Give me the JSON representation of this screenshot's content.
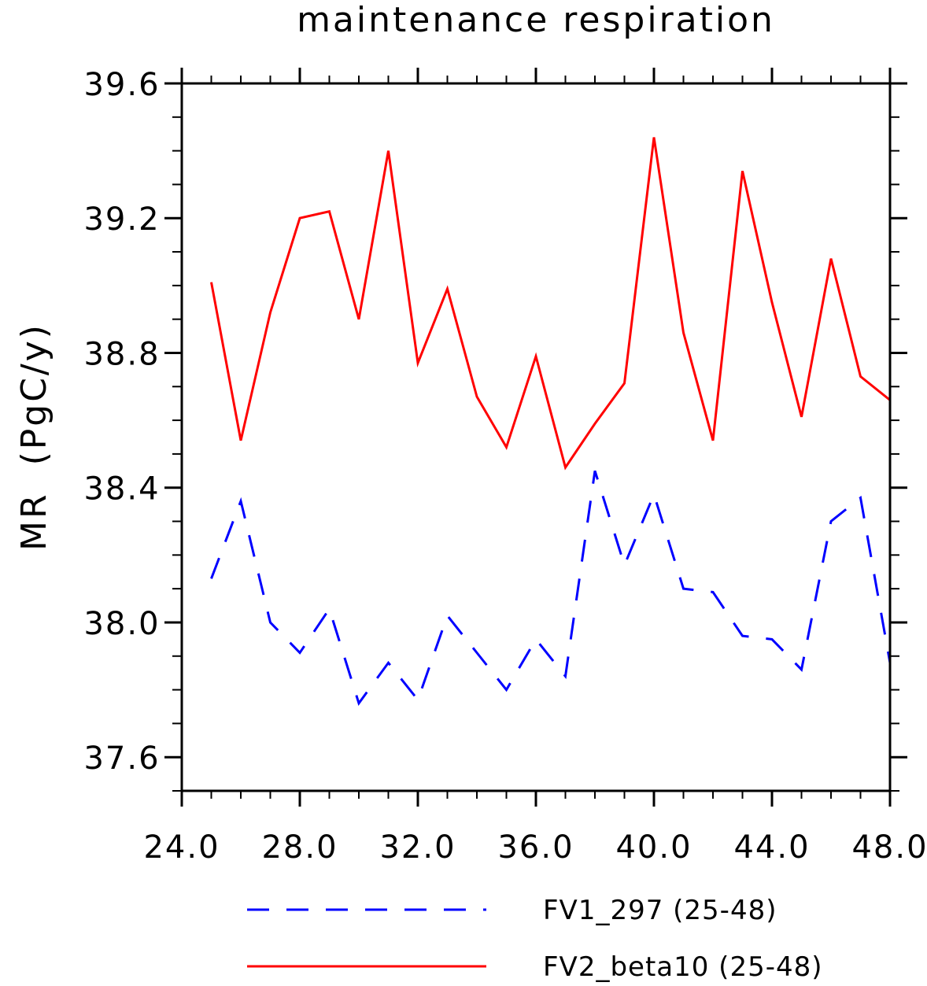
{
  "chart_data": {
    "type": "line",
    "title": "maintenance respiration",
    "xlabel": "",
    "ylabel": "MR  (PgC/y)",
    "xlim": [
      24,
      48
    ],
    "ylim": [
      37.5,
      39.6
    ],
    "x_major_ticks": [
      24,
      28,
      32,
      36,
      40,
      44,
      48
    ],
    "x_tick_labels": [
      "24.0",
      "28.0",
      "32.0",
      "36.0",
      "40.0",
      "44.0",
      "48.0"
    ],
    "y_major_ticks": [
      37.6,
      38.0,
      38.4,
      38.8,
      39.2,
      39.6
    ],
    "y_tick_labels": [
      "37.6",
      "38.0",
      "38.4",
      "38.8",
      "39.2",
      "39.6"
    ],
    "grid": false,
    "legend_position": "bottom",
    "x": [
      25,
      26,
      27,
      28,
      29,
      30,
      31,
      32,
      33,
      34,
      35,
      36,
      37,
      38,
      39,
      40,
      41,
      42,
      43,
      44,
      45,
      46,
      47,
      48
    ],
    "series": [
      {
        "name": "FV1_297 (25-48)",
        "color": "#0000ff",
        "dash": "dashed",
        "values": [
          38.13,
          38.36,
          38.0,
          37.91,
          38.04,
          37.76,
          37.88,
          37.77,
          38.02,
          37.91,
          37.8,
          37.95,
          37.84,
          38.45,
          38.17,
          38.38,
          38.1,
          38.09,
          37.96,
          37.95,
          37.86,
          38.3,
          38.37,
          37.88
        ]
      },
      {
        "name": "FV2_beta10 (25-48)",
        "color": "#ff0000",
        "dash": "solid",
        "values": [
          39.01,
          38.54,
          38.92,
          39.2,
          39.22,
          38.9,
          39.4,
          38.77,
          38.99,
          38.67,
          38.52,
          38.79,
          38.46,
          38.59,
          38.71,
          39.44,
          38.86,
          38.54,
          39.34,
          38.95,
          38.61,
          39.08,
          38.73,
          38.66
        ]
      }
    ]
  }
}
